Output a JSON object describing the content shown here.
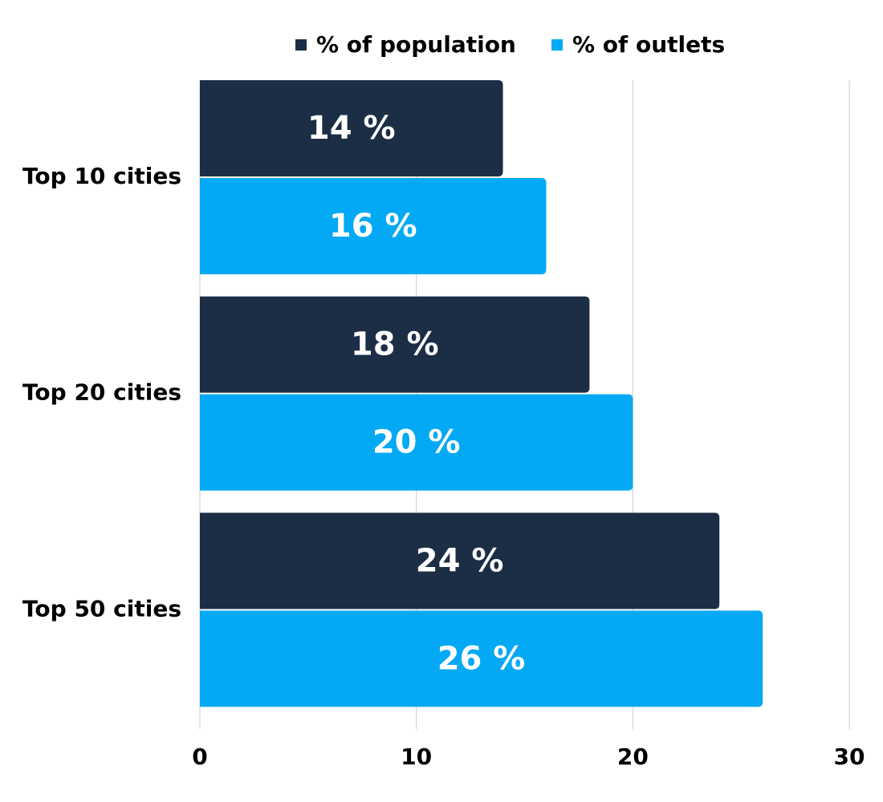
{
  "chart_data": {
    "type": "hbar",
    "categories": [
      "Top 10 cities",
      "Top 20 cities",
      "Top 50 cities"
    ],
    "series": [
      {
        "name": "% of population",
        "color": "#1c2e46",
        "values": [
          14,
          18,
          24
        ],
        "value_labels": [
          "14 %",
          "18 %",
          "24 %"
        ]
      },
      {
        "name": "% of outlets",
        "color": "#03a9f4",
        "values": [
          16,
          20,
          26
        ],
        "value_labels": [
          "16 %",
          "20 %",
          "26 %"
        ]
      }
    ],
    "xlim": [
      0,
      30
    ],
    "xticks": [
      0,
      10,
      20,
      30
    ],
    "grid": true,
    "legend": "top"
  }
}
